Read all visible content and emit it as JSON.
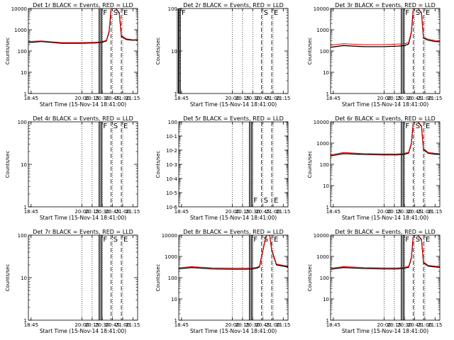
{
  "figure": {
    "background": "#ffffff",
    "events_color": "#000000",
    "lld_color": "#ff0000"
  },
  "chart_data": [
    {
      "type": "line",
      "title": "Det 1r BLACK = Events, RED = LLD",
      "xlabel": "Start Time (15-Nov-14 18:41:00)",
      "ylabel": "Counts/sec",
      "xlim": [
        "18:41",
        "21:22"
      ],
      "x_ticks": [
        "18:45",
        "20:00",
        "20:15",
        "20:30",
        "20:45",
        "21:00",
        "21:15"
      ],
      "y_scale": "log",
      "ylim": [
        1,
        10000
      ],
      "y_ticks": [
        "1",
        "10",
        "100",
        "1000",
        "10000"
      ],
      "grid": "dotted vertical lines at 20:00, 20:15, 20:30, 20:45, 21:00",
      "markers": [
        {
          "label": "F",
          "time": "20:28",
          "style": "solid"
        },
        {
          "label": "S",
          "time": "20:43",
          "style": "dashed"
        },
        {
          "label": "E",
          "time": "20:58",
          "style": "dashed"
        }
      ],
      "series": [
        {
          "name": "Events",
          "color": "#000000",
          "x": [
            "18:41",
            "19:00",
            "19:30",
            "20:00",
            "20:20",
            "20:30",
            "20:36",
            "20:40",
            "20:43",
            "20:50",
            "20:55",
            "20:58",
            "21:05",
            "21:15",
            "21:22"
          ],
          "y": [
            250,
            280,
            230,
            230,
            240,
            260,
            300,
            800,
            10000,
            10000,
            6000,
            500,
            350,
            320,
            330
          ]
        },
        {
          "name": "LLD",
          "color": "#ff0000",
          "x": [
            "18:41",
            "19:00",
            "19:30",
            "20:00",
            "20:20",
            "20:30",
            "20:36",
            "20:40",
            "20:43",
            "20:50",
            "20:55",
            "20:58",
            "21:05",
            "21:15",
            "21:22"
          ],
          "y": [
            280,
            300,
            250,
            250,
            260,
            280,
            320,
            900,
            10000,
            10000,
            6500,
            550,
            380,
            340,
            350
          ]
        }
      ]
    },
    {
      "type": "line",
      "title": "Det 2r BLACK = Events, RED = LLD",
      "xlabel": "Start Time (15-Nov-14 18:41:00)",
      "ylabel": "Counts/sec",
      "xlim": [
        "18:41",
        "21:22"
      ],
      "x_ticks": [
        "18:45",
        "20:00",
        "20:15",
        "20:30",
        "20:45",
        "21:00",
        "21:15"
      ],
      "y_scale": "log",
      "ylim": [
        1,
        100
      ],
      "y_ticks": [
        "1",
        "10",
        "100"
      ],
      "grid": "dotted vertical lines at 20:00, 20:15, 20:30, 20:45, 21:00",
      "markers": [
        {
          "label": "F",
          "time": "18:42",
          "style": "solid"
        },
        {
          "label": "S",
          "time": "20:43",
          "style": "dashed"
        },
        {
          "label": "E",
          "time": "20:58",
          "style": "dashed"
        }
      ],
      "series": []
    },
    {
      "type": "line",
      "title": "Det 3r BLACK = Events, RED = LLD",
      "xlabel": "Start Time (15-Nov-14 18:41:00)",
      "ylabel": "Counts/sec",
      "xlim": [
        "18:41",
        "21:22"
      ],
      "x_ticks": [
        "18:45",
        "20:00",
        "20:15",
        "20:30",
        "20:45",
        "21:00",
        "21:15"
      ],
      "y_scale": "log",
      "ylim": [
        1,
        10000
      ],
      "y_ticks": [
        "1",
        "10",
        "100",
        "1000",
        "10000"
      ],
      "grid": "dotted vertical lines at 20:00, 20:15, 20:30, 20:45, 21:00",
      "markers": [
        {
          "label": "F",
          "time": "20:28",
          "style": "solid"
        },
        {
          "label": "S",
          "time": "20:43",
          "style": "dashed"
        },
        {
          "label": "E",
          "time": "20:58",
          "style": "dashed"
        }
      ],
      "series": [
        {
          "name": "Events",
          "color": "#000000",
          "x": [
            "18:41",
            "19:00",
            "19:30",
            "20:00",
            "20:20",
            "20:30",
            "20:36",
            "20:40",
            "20:43",
            "20:50",
            "20:55",
            "20:58",
            "21:05",
            "21:15",
            "21:22"
          ],
          "y": [
            150,
            180,
            160,
            160,
            170,
            180,
            210,
            700,
            10000,
            10000,
            6000,
            400,
            320,
            280,
            270
          ]
        },
        {
          "name": "LLD",
          "color": "#ff0000",
          "x": [
            "18:41",
            "19:00",
            "19:30",
            "20:00",
            "20:20",
            "20:30",
            "20:36",
            "20:40",
            "20:43",
            "20:50",
            "20:55",
            "20:58",
            "21:05",
            "21:15",
            "21:22"
          ],
          "y": [
            190,
            220,
            200,
            200,
            210,
            220,
            250,
            800,
            10000,
            10000,
            6500,
            450,
            360,
            310,
            300
          ]
        }
      ]
    },
    {
      "type": "line",
      "title": "Det 4r BLACK = Events, RED = LLD",
      "xlabel": "Start Time (15-Nov-14 18:41:00)",
      "ylabel": "Counts/sec",
      "xlim": [
        "18:41",
        "21:22"
      ],
      "x_ticks": [
        "18:45",
        "20:00",
        "20:15",
        "20:30",
        "20:45",
        "21:00",
        "21:15"
      ],
      "y_scale": "log",
      "ylim": [
        1,
        100
      ],
      "y_ticks": [
        "1",
        "10",
        "100"
      ],
      "grid": "dotted vertical lines at 20:00, 20:15, 20:30, 20:45, 21:00",
      "markers": [
        {
          "label": "F",
          "time": "20:28",
          "style": "solid"
        },
        {
          "label": "S",
          "time": "20:43",
          "style": "dashed"
        },
        {
          "label": "E",
          "time": "20:58",
          "style": "dashed"
        }
      ],
      "series": []
    },
    {
      "type": "line",
      "title": "Det 5r BLACK = Events, RED = LLD",
      "xlabel": "Start Time (15-Nov-14 18:41:00)",
      "ylabel": "Counts/sec",
      "xlim": [
        "18:41",
        "21:22"
      ],
      "x_ticks": [
        "18:45",
        "20:00",
        "20:15",
        "20:30",
        "20:45",
        "21:00",
        "21:15"
      ],
      "y_scale": "log",
      "ylim": [
        1e-06,
        1
      ],
      "y_ticks": [
        "10-6",
        "10-5",
        "10-4",
        "10-3",
        "10-2",
        "10-1",
        "100"
      ],
      "grid": "dotted vertical lines at 20:00, 20:15, 20:30, 20:45, 21:00",
      "markers": [
        {
          "label": "F",
          "time": "20:28",
          "style": "solid"
        },
        {
          "label": "S",
          "time": "20:43",
          "style": "dashed"
        },
        {
          "label": "E",
          "time": "20:58",
          "style": "dashed"
        }
      ],
      "series": []
    },
    {
      "type": "line",
      "title": "Det 6r BLACK = Events, RED = LLD",
      "xlabel": "Start Time (15-Nov-14 18:41:00)",
      "ylabel": "Counts/sec",
      "xlim": [
        "18:41",
        "21:22"
      ],
      "x_ticks": [
        "18:45",
        "20:00",
        "20:15",
        "20:30",
        "20:45",
        "21:00",
        "21:15"
      ],
      "y_scale": "log",
      "ylim": [
        1,
        10000
      ],
      "y_ticks": [
        "1",
        "10",
        "100",
        "1000",
        "10000"
      ],
      "grid": "dotted vertical lines at 20:00, 20:15, 20:30, 20:45, 21:00",
      "markers": [
        {
          "label": "F",
          "time": "20:28",
          "style": "solid"
        },
        {
          "label": "S",
          "time": "20:43",
          "style": "dashed"
        },
        {
          "label": "E",
          "time": "20:58",
          "style": "dashed"
        }
      ],
      "series": [
        {
          "name": "Events",
          "color": "#000000",
          "x": [
            "18:41",
            "19:00",
            "19:30",
            "20:00",
            "20:20",
            "20:30",
            "20:36",
            "20:40",
            "20:43",
            "20:50",
            "20:55",
            "20:58",
            "21:05",
            "21:15",
            "21:22"
          ],
          "y": [
            250,
            320,
            290,
            280,
            280,
            300,
            340,
            900,
            10000,
            10000,
            6000,
            500,
            330,
            300,
            290
          ]
        },
        {
          "name": "LLD",
          "color": "#ff0000",
          "x": [
            "18:41",
            "19:00",
            "19:30",
            "20:00",
            "20:20",
            "20:30",
            "20:36",
            "20:40",
            "20:43",
            "20:50",
            "20:55",
            "20:58",
            "21:05",
            "21:15",
            "21:22"
          ],
          "y": [
            280,
            360,
            320,
            310,
            310,
            330,
            370,
            1000,
            10000,
            10000,
            6500,
            550,
            360,
            330,
            320
          ]
        }
      ]
    },
    {
      "type": "line",
      "title": "Det 7r BLACK = Events, RED = LLD",
      "xlabel": "Start Time (15-Nov-14 18:41:00)",
      "ylabel": "Counts/sec",
      "xlim": [
        "18:41",
        "21:22"
      ],
      "x_ticks": [
        "18:45",
        "20:00",
        "20:15",
        "20:30",
        "20:45",
        "21:00",
        "21:15"
      ],
      "y_scale": "log",
      "ylim": [
        1,
        100
      ],
      "y_ticks": [
        "1",
        "10",
        "100"
      ],
      "grid": "dotted vertical lines at 20:00, 20:15, 20:30, 20:45, 21:00",
      "markers": [
        {
          "label": "F",
          "time": "20:28",
          "style": "solid"
        },
        {
          "label": "S",
          "time": "20:43",
          "style": "dashed"
        },
        {
          "label": "E",
          "time": "20:58",
          "style": "dashed"
        }
      ],
      "series": []
    },
    {
      "type": "line",
      "title": "Det 8r BLACK = Events, RED = LLD",
      "xlabel": "Start Time (15-Nov-14 18:41:00)",
      "ylabel": "Counts/sec",
      "xlim": [
        "18:41",
        "21:22"
      ],
      "x_ticks": [
        "18:45",
        "20:00",
        "20:15",
        "20:30",
        "20:45",
        "21:00",
        "21:15"
      ],
      "y_scale": "log",
      "ylim": [
        1,
        10000
      ],
      "y_ticks": [
        "1",
        "10",
        "100",
        "1000",
        "10000"
      ],
      "grid": "dotted vertical lines at 20:00, 20:15, 20:30, 20:45, 21:00",
      "markers": [
        {
          "label": "F",
          "time": "20:28",
          "style": "solid"
        },
        {
          "label": "S",
          "time": "20:43",
          "style": "dashed"
        },
        {
          "label": "E",
          "time": "20:58",
          "style": "dashed"
        }
      ],
      "series": [
        {
          "name": "Events",
          "color": "#000000",
          "x": [
            "18:41",
            "19:00",
            "19:30",
            "20:00",
            "20:20",
            "20:30",
            "20:36",
            "20:40",
            "20:43",
            "20:50",
            "20:55",
            "20:58",
            "21:05",
            "21:15",
            "21:22"
          ],
          "y": [
            260,
            300,
            260,
            250,
            250,
            260,
            280,
            320,
            1000,
            10000,
            10000,
            2000,
            400,
            350,
            320
          ]
        },
        {
          "name": "LLD",
          "color": "#ff0000",
          "x": [
            "18:41",
            "19:00",
            "19:30",
            "20:00",
            "20:20",
            "20:30",
            "20:36",
            "20:40",
            "20:43",
            "20:50",
            "20:55",
            "20:58",
            "21:05",
            "21:15",
            "21:22"
          ],
          "y": [
            290,
            330,
            290,
            280,
            280,
            290,
            310,
            350,
            1100,
            10000,
            10000,
            2200,
            440,
            380,
            350
          ]
        }
      ]
    },
    {
      "type": "line",
      "title": "Det 9r BLACK = Events, RED = LLD",
      "xlabel": "Start Time (15-Nov-14 18:41:00)",
      "ylabel": "Counts/sec",
      "xlim": [
        "18:41",
        "21:22"
      ],
      "x_ticks": [
        "18:45",
        "20:00",
        "20:15",
        "20:30",
        "20:45",
        "21:00",
        "21:15"
      ],
      "y_scale": "log",
      "ylim": [
        1,
        10000
      ],
      "y_ticks": [
        "1",
        "10",
        "100",
        "1000",
        "10000"
      ],
      "grid": "dotted vertical lines at 20:00, 20:15, 20:30, 20:45, 21:00",
      "markers": [
        {
          "label": "F",
          "time": "20:28",
          "style": "solid"
        },
        {
          "label": "S",
          "time": "20:43",
          "style": "dashed"
        },
        {
          "label": "E",
          "time": "20:58",
          "style": "dashed"
        }
      ],
      "series": [
        {
          "name": "Events",
          "color": "#000000",
          "x": [
            "18:41",
            "19:00",
            "19:30",
            "20:00",
            "20:20",
            "20:30",
            "20:36",
            "20:40",
            "20:43",
            "20:50",
            "20:55",
            "20:58",
            "21:05",
            "21:15",
            "21:22"
          ],
          "y": [
            250,
            300,
            270,
            260,
            260,
            280,
            310,
            800,
            10000,
            10000,
            6000,
            500,
            350,
            320,
            310
          ]
        },
        {
          "name": "LLD",
          "color": "#ff0000",
          "x": [
            "18:41",
            "19:00",
            "19:30",
            "20:00",
            "20:20",
            "20:30",
            "20:36",
            "20:40",
            "20:43",
            "20:50",
            "20:55",
            "20:58",
            "21:05",
            "21:15",
            "21:22"
          ],
          "y": [
            280,
            330,
            300,
            290,
            290,
            310,
            340,
            900,
            10000,
            10000,
            6500,
            550,
            380,
            350,
            340
          ]
        }
      ]
    }
  ]
}
